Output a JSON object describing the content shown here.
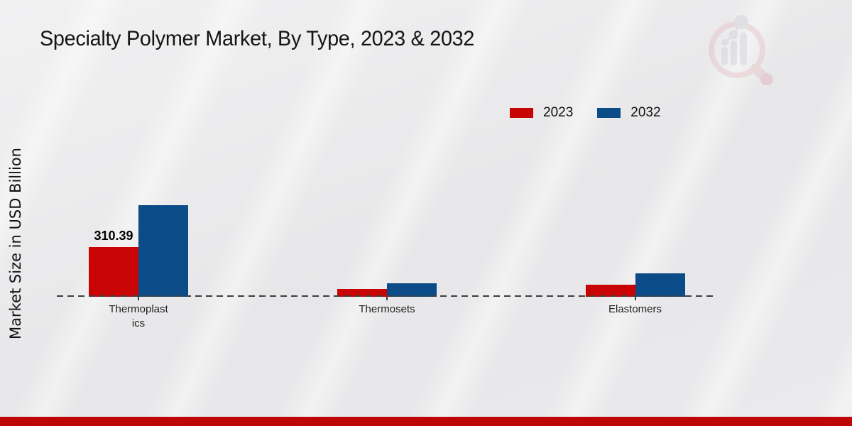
{
  "chart_data": {
    "type": "bar",
    "title": "Specialty Polymer Market, By Type, 2023 & 2032",
    "ylabel": "Market Size in USD Billion",
    "categories": [
      "Thermoplastics",
      "Thermosets",
      "Elastomers"
    ],
    "tick_display": [
      "Thermoplast\nics",
      "Thermosets",
      "Elastomers"
    ],
    "series": [
      {
        "name": "2023",
        "color": "#c90404",
        "values": [
          310.39,
          50,
          75
        ]
      },
      {
        "name": "2032",
        "color": "#0a4b88",
        "values": [
          572,
          84,
          146
        ]
      }
    ],
    "data_labels": [
      {
        "series": "2023",
        "category": "Thermoplastics",
        "text": "310.39"
      }
    ],
    "ylim": [
      0,
      620
    ],
    "grid": false,
    "legend_position": "top-right",
    "x_axis_style": "dashed"
  },
  "colors": {
    "bar_2023": "#c90404",
    "bar_2032": "#0a4b88",
    "footer_bar": "#bd0707",
    "background": "#e9e9eb",
    "text": "#141414"
  },
  "icons": {
    "watermark": "magnifier-bar-chart-logo"
  }
}
